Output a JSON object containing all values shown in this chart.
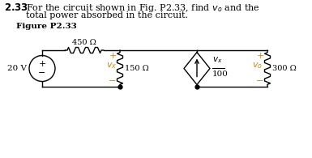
{
  "title_number": "2.33",
  "title_line1": "For the circuit shown in Fig. P2.33, find $v_o$ and the",
  "title_line2": "total power absorbed in the circuit.",
  "fig_label": "Figure P2.33",
  "r1_label": "450 Ω",
  "r2_label": "150 Ω",
  "r3_label": "300 Ω",
  "vs_label": "20 V",
  "vx_label": "$v_x$",
  "vo_label": "$v_o$",
  "dep_label_num": "$v_x$",
  "dep_label_den": "100",
  "orange": "#D4860A",
  "black": "#000000",
  "bg": "#ffffff",
  "fig_w": 3.85,
  "fig_h": 1.95,
  "dpi": 100
}
